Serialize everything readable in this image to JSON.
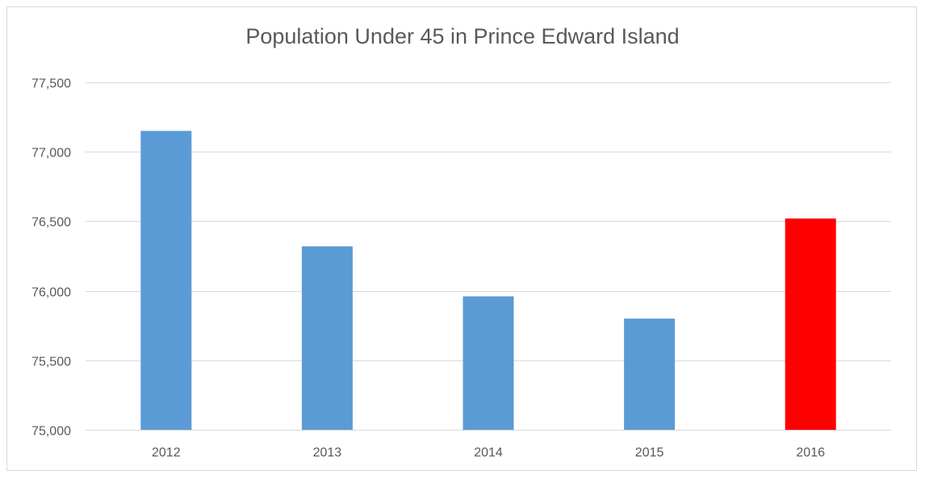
{
  "chart_data": {
    "type": "bar",
    "title": "Population Under 45 in Prince Edward Island",
    "xlabel": "",
    "ylabel": "",
    "categories": [
      "2012",
      "2013",
      "2014",
      "2015",
      "2016"
    ],
    "values": [
      77150,
      76320,
      75960,
      75800,
      76520
    ],
    "bar_colors": [
      "#5b9bd5",
      "#5b9bd5",
      "#5b9bd5",
      "#5b9bd5",
      "#ff0000"
    ],
    "ylim": [
      75000,
      77500
    ],
    "yticks": [
      75000,
      75500,
      76000,
      76500,
      77000,
      77500
    ],
    "ytick_labels": [
      "75,000",
      "75,500",
      "76,000",
      "76,500",
      "77,000",
      "77,500"
    ],
    "grid": true,
    "gridline_color": "#d9d9d9",
    "text_color": "#595959",
    "legend": "none"
  }
}
